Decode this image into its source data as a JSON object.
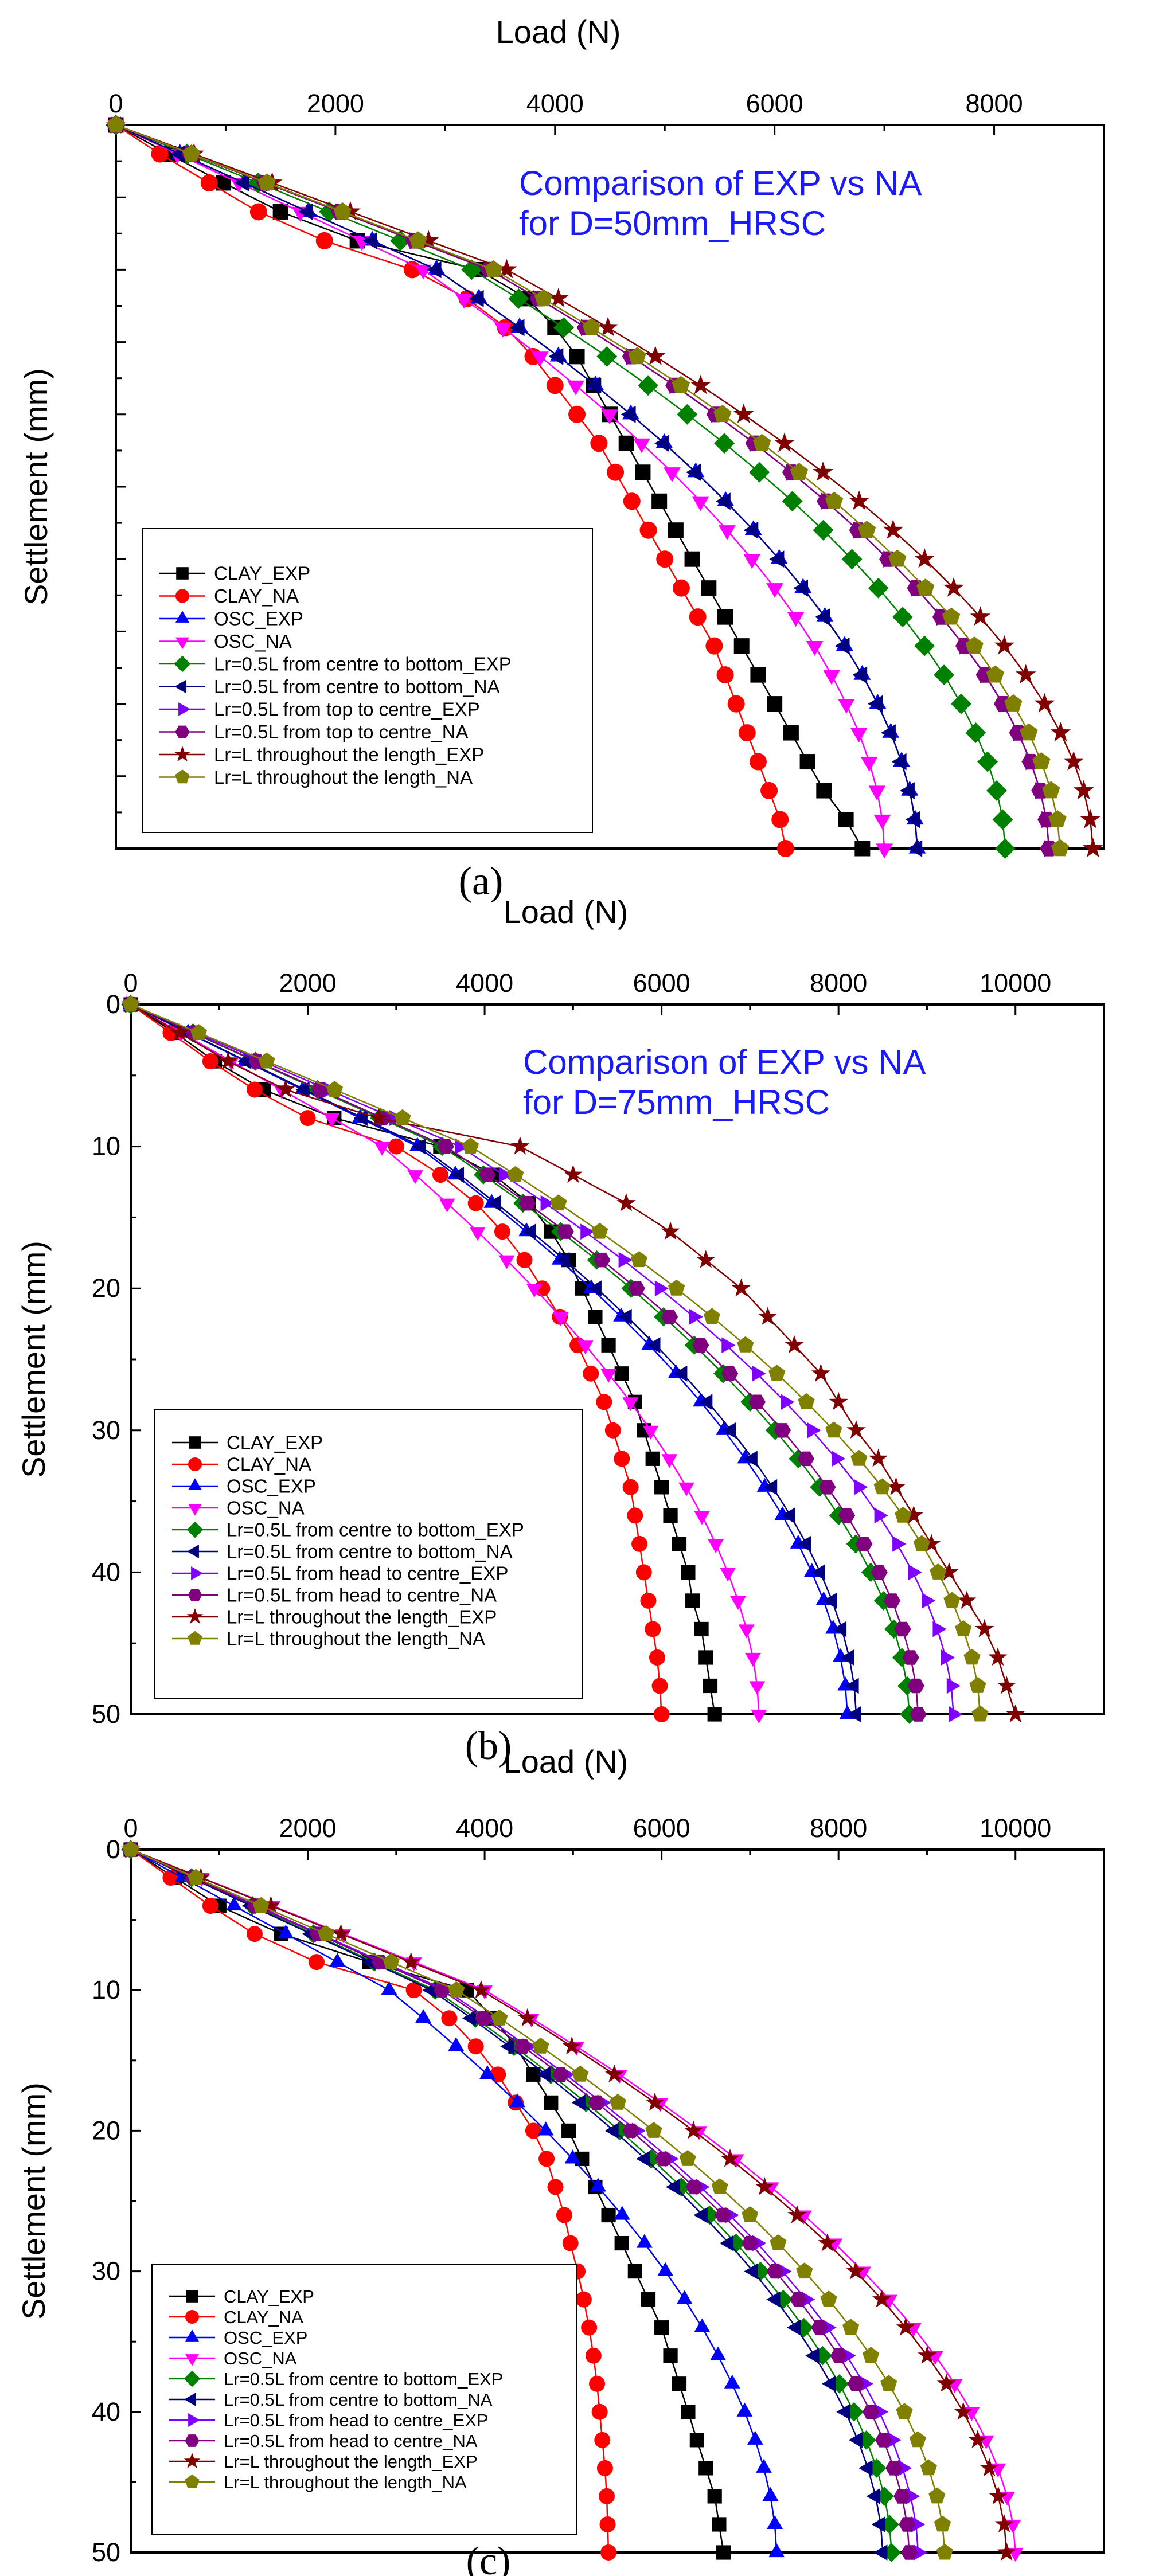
{
  "panels": [
    {
      "label": "(a)",
      "xlabel": "Load (N)",
      "ylabel": "Settlement (mm)",
      "annotation": [
        "Comparison of EXP vs NA",
        "for D=50mm_HRSC"
      ],
      "xticks": [
        "0",
        "2000",
        "4000",
        "6000",
        "8000"
      ],
      "yticks": [],
      "legend": [
        "CLAY_EXP",
        "CLAY_NA",
        "OSC_EXP",
        "OSC_NA",
        "Lr=0.5L from centre to bottom_EXP",
        "Lr=0.5L from centre to bottom_NA",
        "Lr=0.5L from top to centre_EXP",
        "Lr=0.5L from top to centre_NA",
        "Lr=L throughout the length_EXP",
        "Lr=L throughout the length_NA"
      ]
    },
    {
      "label": "(b)",
      "xlabel": "Load (N)",
      "ylabel": "Settlement (mm)",
      "annotation": [
        "Comparison of EXP vs NA",
        "for D=75mm_HRSC"
      ],
      "xticks": [
        "0",
        "2000",
        "4000",
        "6000",
        "8000",
        "10000"
      ],
      "yticks": [
        "0",
        "10",
        "20",
        "30",
        "40",
        "50"
      ],
      "legend": [
        "CLAY_EXP",
        "CLAY_NA",
        "OSC_EXP",
        "OSC_NA",
        "Lr=0.5L from centre to bottom_EXP",
        "Lr=0.5L from centre to bottom_NA",
        "Lr=0.5L from head to centre_EXP",
        "Lr=0.5L from head to centre_NA",
        "Lr=L throughout the length_EXP",
        "Lr=L throughout the length_NA"
      ]
    },
    {
      "label": "(c)",
      "xlabel": "Load (N)",
      "ylabel": "Settlement (mm)",
      "annotation": [],
      "xticks": [
        "0",
        "2000",
        "4000",
        "6000",
        "8000",
        "10000"
      ],
      "yticks": [
        "0",
        "10",
        "20",
        "30",
        "40",
        "50"
      ],
      "legend": [
        "CLAY_EXP",
        "CLAY_NA",
        "OSC_EXP",
        "OSC_NA",
        "Lr=0.5L from centre to bottom_EXP",
        "Lr=0.5L from centre to bottom_NA",
        "Lr=0.5L from head to centre_EXP",
        "Lr=0.5L from head to centre_NA",
        "Lr=L throughout the length_EXP",
        "Lr=L throughout the length_NA"
      ]
    }
  ],
  "series_style": [
    {
      "color": "#000000",
      "marker": "square"
    },
    {
      "color": "#ff0000",
      "marker": "circle"
    },
    {
      "color": "#0000ff",
      "marker": "triangle-up"
    },
    {
      "color": "#ff00ff",
      "marker": "triangle-down"
    },
    {
      "color": "#008000",
      "marker": "diamond"
    },
    {
      "color": "#000080",
      "marker": "triangle-left"
    },
    {
      "color": "#8000ff",
      "marker": "triangle-right"
    },
    {
      "color": "#800080",
      "marker": "hexagon"
    },
    {
      "color": "#800000",
      "marker": "star"
    },
    {
      "color": "#808000",
      "marker": "pentagon"
    }
  ],
  "chart_data": [
    {
      "type": "line",
      "title": "Comparison of EXP vs NA for D=50mm_HRSC",
      "xlabel": "Load (N)",
      "ylabel": "Settlement (mm)",
      "xlim": [
        0,
        9000
      ],
      "ylim": [
        0,
        50
      ],
      "y_axis_inverted": true,
      "x_axis_position": "top",
      "finals": [
        6800,
        6100,
        7300,
        7000,
        8100,
        7300,
        8500,
        8500,
        8900,
        8600
      ],
      "series": [
        {
          "name": "CLAY_EXP",
          "x_at_y": {
            "0": 0,
            "2": 480,
            "4": 980,
            "6": 1500,
            "8": 2200,
            "10": 3300,
            "12": 3750,
            "14": 4000,
            "16": 4200,
            "18": 4350,
            "20": 4500,
            "22": 4650,
            "24": 4800,
            "26": 4950,
            "28": 5100,
            "30": 5250,
            "32": 5400,
            "34": 5550,
            "36": 5700,
            "38": 5850,
            "40": 6000,
            "42": 6150,
            "44": 6300,
            "46": 6450,
            "48": 6650,
            "50": 6800
          }
        },
        {
          "name": "CLAY_NA",
          "x_at_y": {
            "0": 0,
            "2": 400,
            "4": 850,
            "6": 1300,
            "8": 1900,
            "10": 2700,
            "12": 3200,
            "14": 3550,
            "16": 3800,
            "18": 4000,
            "20": 4200,
            "22": 4400,
            "24": 4550,
            "26": 4700,
            "28": 4850,
            "30": 5000,
            "32": 5150,
            "34": 5300,
            "36": 5450,
            "38": 5550,
            "40": 5650,
            "42": 5750,
            "44": 5850,
            "46": 5950,
            "48": 6050,
            "50": 6100
          }
        }
      ]
    },
    {
      "type": "line",
      "title": "Comparison of EXP vs NA for D=75mm_HRSC",
      "xlabel": "Load (N)",
      "ylabel": "Settlement (mm)",
      "xlim": [
        0,
        11000
      ],
      "ylim": [
        0,
        50
      ],
      "y_axis_inverted": true,
      "x_axis_position": "top",
      "finals": [
        6600,
        6000,
        8100,
        7100,
        8800,
        8200,
        9300,
        8900,
        10000,
        9600
      ],
      "series": [
        {
          "name": "CLAY_EXP",
          "x_at_y": {
            "0": 0,
            "2": 500,
            "4": 950,
            "6": 1500,
            "8": 2300,
            "10": 3500,
            "12": 4100,
            "14": 4500,
            "16": 4750,
            "18": 4950,
            "20": 5100,
            "22": 5250,
            "24": 5400,
            "26": 5550,
            "28": 5700,
            "30": 5800,
            "32": 5900,
            "34": 6000,
            "36": 6100,
            "38": 6200,
            "40": 6300,
            "42": 6350,
            "44": 6450,
            "46": 6500,
            "48": 6550,
            "50": 6600
          }
        },
        {
          "name": "CLAY_NA",
          "x_at_y": {
            "0": 0,
            "2": 450,
            "4": 900,
            "6": 1400,
            "8": 2000,
            "10": 3000,
            "12": 3500,
            "14": 3900,
            "16": 4200,
            "18": 4450,
            "20": 4650,
            "22": 4850,
            "24": 5050,
            "26": 5200,
            "28": 5350,
            "30": 5450,
            "32": 5550,
            "34": 5650,
            "36": 5700,
            "38": 5750,
            "40": 5800,
            "42": 5850,
            "44": 5900,
            "46": 5950,
            "48": 5980,
            "50": 6000
          }
        },
        {
          "name": "Lr=L throughout the length_EXP",
          "x_at_y": {
            "0": 0,
            "2": 550,
            "4": 1100,
            "6": 1750,
            "8": 2800,
            "10": 4400,
            "12": 5000,
            "14": 5600,
            "16": 6100,
            "18": 6500,
            "20": 6900,
            "22": 7200,
            "24": 7500,
            "26": 7800,
            "28": 8000,
            "30": 8200,
            "32": 8450,
            "34": 8650,
            "36": 8850,
            "38": 9050,
            "40": 9250,
            "42": 9450,
            "44": 9650,
            "46": 9800,
            "48": 9900,
            "50": 10000
          }
        }
      ]
    },
    {
      "type": "line",
      "xlabel": "Load (N)",
      "ylabel": "Settlement (mm)",
      "xlim": [
        0,
        11000
      ],
      "ylim": [
        0,
        50
      ],
      "y_axis_inverted": true,
      "x_axis_position": "top",
      "finals": [
        6700,
        5400,
        7300,
        10000,
        8600,
        8500,
        8900,
        8800,
        9900,
        9200
      ],
      "series": [
        {
          "name": "CLAY_EXP",
          "x_at_y": {
            "0": 0,
            "2": 500,
            "4": 1000,
            "6": 1700,
            "8": 2700,
            "10": 3800,
            "12": 4100,
            "14": 4350,
            "16": 4550,
            "18": 4750,
            "20": 4950,
            "22": 5100,
            "24": 5250,
            "26": 5400,
            "28": 5550,
            "30": 5700,
            "32": 5850,
            "34": 6000,
            "36": 6100,
            "38": 6200,
            "40": 6300,
            "42": 6400,
            "44": 6500,
            "46": 6600,
            "48": 6650,
            "50": 6700
          }
        },
        {
          "name": "CLAY_NA",
          "x_at_y": {
            "0": 0,
            "2": 450,
            "4": 900,
            "6": 1400,
            "8": 2100,
            "10": 3200,
            "12": 3600,
            "14": 3900,
            "16": 4150,
            "18": 4350,
            "20": 4550,
            "22": 4700,
            "24": 4800,
            "26": 4900,
            "28": 4970,
            "30": 5050,
            "32": 5120,
            "34": 5180,
            "36": 5230,
            "38": 5270,
            "40": 5300,
            "42": 5330,
            "44": 5360,
            "46": 5380,
            "48": 5390,
            "50": 5400
          }
        }
      ]
    }
  ]
}
